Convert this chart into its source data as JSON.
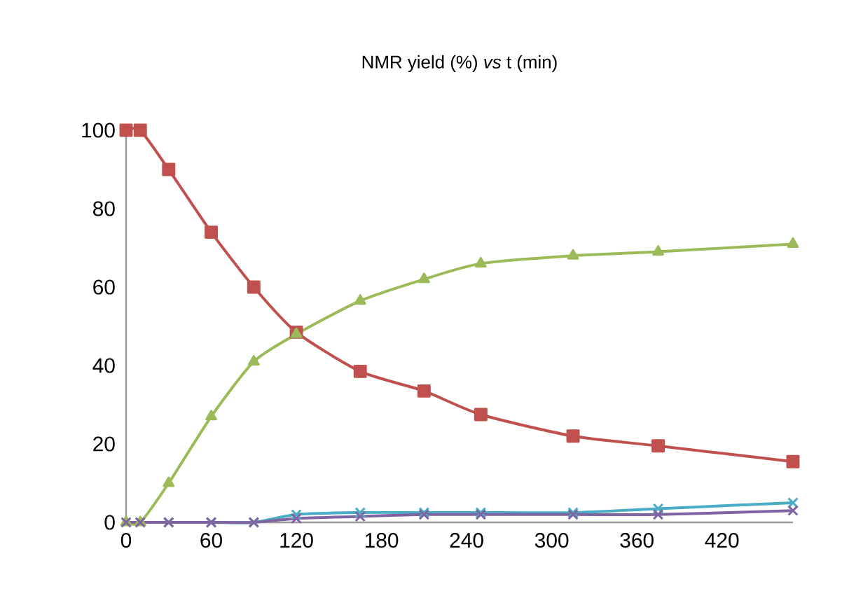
{
  "chart_data": {
    "type": "line",
    "title": "NMR yield (%) *vs* t (min)",
    "x": [
      0,
      10,
      30,
      60,
      90,
      120,
      165,
      210,
      250,
      315,
      375,
      470
    ],
    "series": [
      {
        "color": "#c0504d",
        "marker": "square",
        "values": [
          100,
          100,
          90,
          74,
          60,
          48.5,
          38.5,
          33.5,
          27.5,
          22,
          19.5,
          15.5
        ]
      },
      {
        "color": "#9bbb59",
        "marker": "triangle",
        "values": [
          0,
          0,
          10,
          27,
          41,
          48,
          56.5,
          62,
          66,
          68,
          69,
          71
        ]
      },
      {
        "color": "#4bacc6",
        "marker": "cross",
        "values": [
          null,
          null,
          0,
          0,
          0,
          2,
          2.5,
          2.5,
          2.5,
          2.5,
          3.5,
          5
        ]
      },
      {
        "color": "#8064a2",
        "marker": "cross",
        "values": [
          0,
          0,
          0,
          0,
          0,
          1,
          1.5,
          2,
          2,
          2,
          2,
          3
        ]
      }
    ],
    "xlim": [
      0,
      470
    ],
    "xticks": [
      0,
      60,
      120,
      180,
      240,
      300,
      360,
      420
    ],
    "ylim": [
      0,
      100
    ],
    "yticks": [
      0,
      20,
      40,
      60,
      80,
      100
    ],
    "grid": false,
    "line_style": "solid"
  }
}
